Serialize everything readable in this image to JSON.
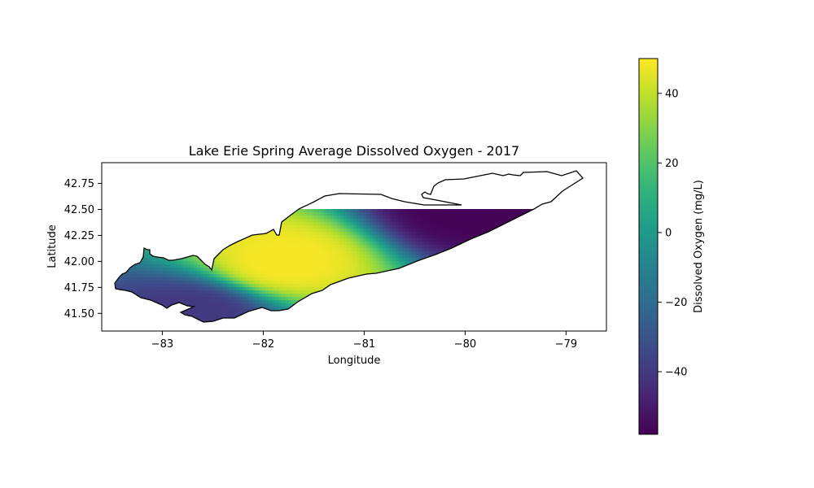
{
  "chart_data": {
    "type": "heatmap",
    "title": "Lake Erie Spring Average Dissolved Oxygen - 2017",
    "xlabel": "Longitude",
    "ylabel": "Latitude",
    "xlim": [
      -83.6,
      -78.6
    ],
    "ylim": [
      41.33,
      42.95
    ],
    "xticks": [
      -83,
      -82,
      -81,
      -80,
      -79
    ],
    "yticks": [
      41.5,
      41.75,
      42.0,
      42.25,
      42.5,
      42.75
    ],
    "xtick_labels": [
      "−83",
      "−82",
      "−81",
      "−80",
      "−79"
    ],
    "ytick_labels": [
      "41.50",
      "41.75",
      "42.00",
      "42.25",
      "42.50",
      "42.75"
    ],
    "colormap": "viridis",
    "colorbar": {
      "label": "Dissolved Oxygen (mg/L)",
      "range": [
        -58,
        50
      ],
      "ticks": [
        -40,
        -20,
        0,
        20,
        40
      ],
      "tick_labels": [
        "−40",
        "−20",
        "0",
        "20",
        "40"
      ]
    },
    "field_extremes": [
      {
        "lon": -81.8,
        "lat": 42.0,
        "value": 49
      },
      {
        "lon": -80.0,
        "lat": 42.5,
        "value": -57
      },
      {
        "lon": -82.7,
        "lat": 41.5,
        "value": -40
      }
    ],
    "grid": false
  }
}
